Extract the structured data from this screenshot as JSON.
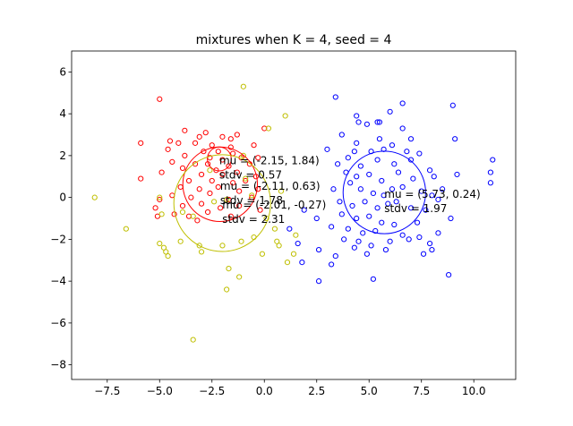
{
  "chart_data": {
    "type": "scatter",
    "title": "mixtures when K = 4, seed = 4",
    "xlabel": "",
    "ylabel": "",
    "xlim": [
      -9.2,
      12.0
    ],
    "ylim": [
      -8.7,
      7.0
    ],
    "xticks": [
      -7.5,
      -5.0,
      -2.5,
      0.0,
      2.5,
      5.0,
      7.5,
      10.0
    ],
    "xtick_labels": [
      "−7.5",
      "−5.0",
      "−2.5",
      "0.0",
      "2.5",
      "5.0",
      "7.5",
      "10.0"
    ],
    "yticks": [
      -8,
      -6,
      -4,
      -2,
      0,
      2,
      4,
      6
    ],
    "ytick_labels": [
      "−8",
      "−6",
      "−4",
      "−2",
      "0",
      "2",
      "4",
      "6"
    ],
    "grid": false,
    "series": [
      {
        "color": "#0000ff",
        "marker": "open-circle",
        "points": [
          [
            3.4,
            4.8
          ],
          [
            4.4,
            3.9
          ],
          [
            6.0,
            4.1
          ],
          [
            6.6,
            4.5
          ],
          [
            9.0,
            4.4
          ],
          [
            4.5,
            3.6
          ],
          [
            4.9,
            3.5
          ],
          [
            5.4,
            3.6
          ],
          [
            5.5,
            3.6
          ],
          [
            6.6,
            3.3
          ],
          [
            3.7,
            3.0
          ],
          [
            4.4,
            2.6
          ],
          [
            5.5,
            2.8
          ],
          [
            6.1,
            2.5
          ],
          [
            7.0,
            2.8
          ],
          [
            9.1,
            2.8
          ],
          [
            3.0,
            2.3
          ],
          [
            4.3,
            2.2
          ],
          [
            5.1,
            2.2
          ],
          [
            5.7,
            2.3
          ],
          [
            6.8,
            2.2
          ],
          [
            7.4,
            2.1
          ],
          [
            3.5,
            1.6
          ],
          [
            4.0,
            1.9
          ],
          [
            4.6,
            1.5
          ],
          [
            5.4,
            1.8
          ],
          [
            6.2,
            1.6
          ],
          [
            7.0,
            1.8
          ],
          [
            7.9,
            1.3
          ],
          [
            10.9,
            1.8
          ],
          [
            3.9,
            1.2
          ],
          [
            4.4,
            1.0
          ],
          [
            5.0,
            1.1
          ],
          [
            5.6,
            0.8
          ],
          [
            6.4,
            1.2
          ],
          [
            7.1,
            0.9
          ],
          [
            8.1,
            1.0
          ],
          [
            9.2,
            1.1
          ],
          [
            10.8,
            1.2
          ],
          [
            3.3,
            0.4
          ],
          [
            4.1,
            0.7
          ],
          [
            4.6,
            0.4
          ],
          [
            5.2,
            0.2
          ],
          [
            5.7,
            0.1
          ],
          [
            6.1,
            0.4
          ],
          [
            6.6,
            0.5
          ],
          [
            7.5,
            0.3
          ],
          [
            8.0,
            0.1
          ],
          [
            8.5,
            0.4
          ],
          [
            10.8,
            0.7
          ],
          [
            3.6,
            -0.2
          ],
          [
            4.2,
            -0.4
          ],
          [
            4.8,
            -0.2
          ],
          [
            5.4,
            -0.5
          ],
          [
            5.9,
            -0.3
          ],
          [
            6.3,
            -0.2
          ],
          [
            7.0,
            -0.5
          ],
          [
            7.7,
            -0.6
          ],
          [
            8.3,
            -0.1
          ],
          [
            3.7,
            -0.8
          ],
          [
            4.4,
            -1.0
          ],
          [
            5.0,
            -0.9
          ],
          [
            5.6,
            -1.2
          ],
          [
            6.2,
            -1.3
          ],
          [
            7.3,
            -1.2
          ],
          [
            8.9,
            -1.0
          ],
          [
            3.2,
            -1.4
          ],
          [
            4.0,
            -1.5
          ],
          [
            4.7,
            -1.7
          ],
          [
            5.3,
            -1.6
          ],
          [
            6.6,
            -1.8
          ],
          [
            7.4,
            -1.9
          ],
          [
            8.3,
            -1.7
          ],
          [
            3.8,
            -2.0
          ],
          [
            4.5,
            -2.1
          ],
          [
            5.1,
            -2.3
          ],
          [
            6.0,
            -2.1
          ],
          [
            6.9,
            -2.0
          ],
          [
            7.9,
            -2.2
          ],
          [
            4.3,
            -2.4
          ],
          [
            4.9,
            -2.7
          ],
          [
            5.8,
            -2.5
          ],
          [
            7.6,
            -2.7
          ],
          [
            8.0,
            -2.5
          ],
          [
            3.4,
            -2.8
          ],
          [
            2.6,
            -2.5
          ],
          [
            1.8,
            -3.1
          ],
          [
            3.2,
            -3.2
          ],
          [
            8.8,
            -3.7
          ],
          [
            2.6,
            -4.0
          ],
          [
            5.2,
            -3.9
          ],
          [
            1.9,
            -0.6
          ],
          [
            2.5,
            -1.0
          ],
          [
            1.2,
            -1.5
          ],
          [
            1.6,
            -2.2
          ]
        ]
      },
      {
        "color": "#ff0000",
        "marker": "open-circle",
        "points": [
          [
            -5.0,
            4.7
          ],
          [
            0.0,
            3.3
          ],
          [
            -3.8,
            3.2
          ],
          [
            -2.8,
            3.1
          ],
          [
            -1.3,
            3.0
          ],
          [
            -3.1,
            2.9
          ],
          [
            -2.0,
            2.9
          ],
          [
            -1.6,
            2.8
          ],
          [
            -5.9,
            2.6
          ],
          [
            -4.5,
            2.7
          ],
          [
            -4.1,
            2.6
          ],
          [
            -3.3,
            2.6
          ],
          [
            -2.5,
            2.5
          ],
          [
            -1.6,
            2.4
          ],
          [
            -0.5,
            2.5
          ],
          [
            -4.6,
            2.3
          ],
          [
            -2.9,
            2.2
          ],
          [
            -2.2,
            2.2
          ],
          [
            -1.5,
            2.1
          ],
          [
            -3.8,
            2.0
          ],
          [
            -2.6,
            1.9
          ],
          [
            -2.0,
            1.8
          ],
          [
            -1.1,
            1.9
          ],
          [
            -0.3,
            1.9
          ],
          [
            -4.4,
            1.7
          ],
          [
            -3.3,
            1.6
          ],
          [
            -2.7,
            1.6
          ],
          [
            -1.7,
            1.5
          ],
          [
            -0.7,
            1.6
          ],
          [
            -3.9,
            1.4
          ],
          [
            -2.3,
            1.3
          ],
          [
            -1.3,
            1.2
          ],
          [
            -4.9,
            1.2
          ],
          [
            -3.0,
            1.1
          ],
          [
            -2.0,
            1.1
          ],
          [
            -0.4,
            1.0
          ],
          [
            -5.9,
            0.9
          ],
          [
            -3.6,
            0.8
          ],
          [
            -2.5,
            0.8
          ],
          [
            -1.5,
            0.7
          ],
          [
            -0.9,
            0.8
          ],
          [
            -4.0,
            0.5
          ],
          [
            -3.1,
            0.4
          ],
          [
            -2.2,
            0.5
          ],
          [
            -1.2,
            0.3
          ],
          [
            -0.3,
            0.4
          ],
          [
            -4.4,
            0.1
          ],
          [
            -3.5,
            0.0
          ],
          [
            -2.6,
            0.2
          ],
          [
            -1.7,
            -0.1
          ],
          [
            -0.6,
            0.0
          ],
          [
            -5.0,
            -0.1
          ],
          [
            -3.9,
            -0.4
          ],
          [
            -3.0,
            -0.3
          ],
          [
            -2.1,
            -0.5
          ],
          [
            -1.2,
            -0.4
          ],
          [
            -5.2,
            -0.5
          ],
          [
            -4.3,
            -0.8
          ],
          [
            -3.6,
            -0.9
          ],
          [
            -2.7,
            -0.7
          ],
          [
            -1.6,
            -0.9
          ],
          [
            -0.2,
            -0.6
          ],
          [
            -5.1,
            -0.9
          ],
          [
            -3.2,
            -1.1
          ]
        ]
      },
      {
        "color": "#bfbf00",
        "marker": "open-circle",
        "points": [
          [
            -8.1,
            0.0
          ],
          [
            -6.6,
            -1.5
          ],
          [
            -5.0,
            -2.2
          ],
          [
            -4.8,
            -2.4
          ],
          [
            -4.7,
            -2.6
          ],
          [
            -4.6,
            -2.8
          ],
          [
            -4.0,
            -2.1
          ],
          [
            -3.1,
            -2.3
          ],
          [
            -3.0,
            -2.6
          ],
          [
            -2.0,
            -2.3
          ],
          [
            -1.1,
            -2.1
          ],
          [
            -0.5,
            -1.9
          ],
          [
            0.1,
            -1.0
          ],
          [
            0.5,
            -1.5
          ],
          [
            0.6,
            -2.1
          ],
          [
            0.7,
            -2.3
          ],
          [
            1.5,
            -1.8
          ],
          [
            1.4,
            -2.7
          ],
          [
            1.1,
            -3.1
          ],
          [
            -0.1,
            -2.7
          ],
          [
            -1.7,
            -3.4
          ],
          [
            -1.2,
            -3.8
          ],
          [
            -1.8,
            -4.4
          ],
          [
            -3.4,
            -6.8
          ],
          [
            -1.0,
            5.3
          ],
          [
            1.0,
            3.9
          ],
          [
            0.2,
            3.3
          ],
          [
            -0.9,
            0.9
          ],
          [
            -0.6,
            0.1
          ],
          [
            -1.8,
            -0.1
          ],
          [
            0.8,
            0.3
          ],
          [
            -1.0,
            2.0
          ],
          [
            -2.6,
            1.3
          ],
          [
            -3.4,
            -0.9
          ],
          [
            -4.9,
            -0.8
          ],
          [
            -5.0,
            0.0
          ],
          [
            -3.9,
            -0.7
          ],
          [
            -2.4,
            -0.2
          ]
        ]
      }
    ],
    "circles": [
      {
        "color": "#ff0000",
        "cx": -2.15,
        "cy": 1.84,
        "r": 0.57
      },
      {
        "color": "#ff0000",
        "cx": -2.11,
        "cy": 0.63,
        "r": 1.78
      },
      {
        "color": "#bfbf00",
        "cx": -2.01,
        "cy": -0.27,
        "r": 2.31
      },
      {
        "color": "#0000ff",
        "cx": 5.73,
        "cy": 0.24,
        "r": 1.97
      }
    ],
    "annotations": [
      {
        "id": "a1",
        "text": "mu = (-2.15, 1.84)",
        "x": -2.15,
        "y": 1.84
      },
      {
        "id": "a2",
        "text": "stdv = 0.57",
        "x": -2.15,
        "y": 1.84
      },
      {
        "id": "a3",
        "text": "mu = (-2.11, 0.63)",
        "x": -2.11,
        "y": 0.63
      },
      {
        "id": "a4",
        "text": "stdv = 1.78",
        "x": -2.11,
        "y": 0.63
      },
      {
        "id": "a5",
        "text": "mu = (-2.01, -0.27)",
        "x": -2.01,
        "y": -0.27
      },
      {
        "id": "a6",
        "text": "stdv = 2.31",
        "x": -2.01,
        "y": -0.27
      },
      {
        "id": "a7",
        "text": "mu = (5.73, 0.24)",
        "x": 5.73,
        "y": 0.24
      },
      {
        "id": "a8",
        "text": "stdv = 1.97",
        "x": 5.73,
        "y": 0.24
      }
    ]
  }
}
